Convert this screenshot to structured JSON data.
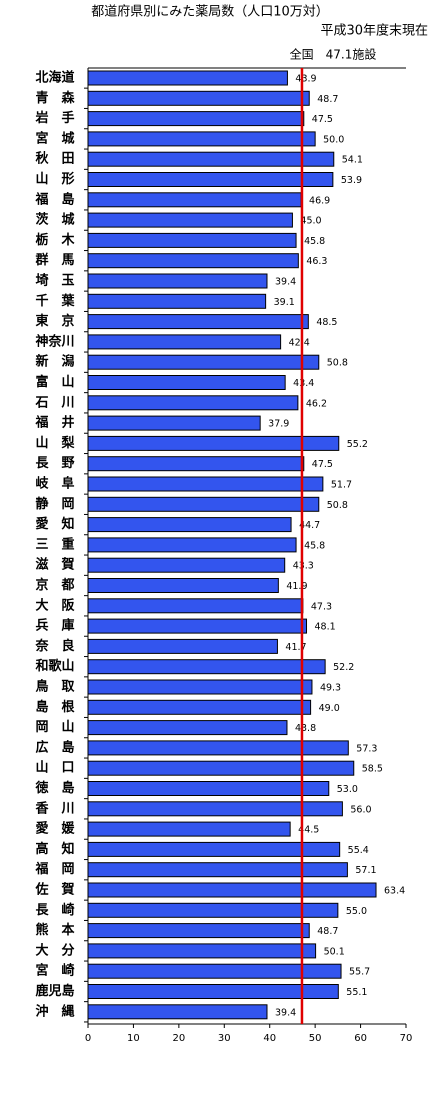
{
  "chart_data": {
    "type": "barh",
    "title": "都道府県別にみた薬局数（人口10万対）",
    "subtitle": "平成30年度末現在",
    "categories": [
      "北海道",
      "青　森",
      "岩　手",
      "宮　城",
      "秋　田",
      "山　形",
      "福　島",
      "茨　城",
      "栃　木",
      "群　馬",
      "埼　玉",
      "千　葉",
      "東　京",
      "神奈川",
      "新　潟",
      "富　山",
      "石　川",
      "福　井",
      "山　梨",
      "長　野",
      "岐　阜",
      "静　岡",
      "愛　知",
      "三　重",
      "滋　賀",
      "京　都",
      "大　阪",
      "兵　庫",
      "奈　良",
      "和歌山",
      "鳥　取",
      "島　根",
      "岡　山",
      "広　島",
      "山　口",
      "徳　島",
      "香　川",
      "愛　媛",
      "高　知",
      "福　岡",
      "佐　賀",
      "長　崎",
      "熊　本",
      "大　分",
      "宮　崎",
      "鹿児島",
      "沖　縄"
    ],
    "values": [
      43.9,
      48.7,
      47.5,
      50.0,
      54.1,
      53.9,
      46.9,
      45.0,
      45.8,
      46.3,
      39.4,
      39.1,
      48.5,
      42.4,
      50.8,
      43.4,
      46.2,
      37.9,
      55.2,
      47.5,
      51.7,
      50.8,
      44.7,
      45.8,
      43.3,
      41.9,
      47.3,
      48.1,
      41.7,
      52.2,
      49.3,
      49.0,
      43.8,
      57.3,
      58.5,
      53.0,
      56.0,
      44.5,
      55.4,
      57.1,
      63.4,
      55.0,
      48.7,
      50.1,
      55.7,
      55.1,
      39.4
    ],
    "value_labels": [
      "43.9",
      "48.7",
      "47.5",
      "50.0",
      "54.1",
      "53.9",
      "46.9",
      "45.0",
      "45.8",
      "46.3",
      "39.4",
      "39.1",
      "48.5",
      "42.4",
      "50.8",
      "43.4",
      "46.2",
      "37.9",
      "55.2",
      "47.5",
      "51.7",
      "50.8",
      "44.7",
      "45.8",
      "43.3",
      "41.9",
      "47.3",
      "48.1",
      "41.7",
      "52.2",
      "49.3",
      "49.0",
      "43.8",
      "57.3",
      "58.5",
      "53.0",
      "56.0",
      "44.5",
      "55.4",
      "57.1",
      "63.4",
      "55.0",
      "48.7",
      "50.1",
      "55.7",
      "55.1",
      "39.4"
    ],
    "color": "#3355ee",
    "xlim": [
      0,
      70
    ],
    "xticks": [
      0,
      10,
      20,
      30,
      40,
      50,
      60,
      70
    ],
    "reference": {
      "value": 47.1,
      "label": "全国　47.1施設",
      "color": "#e00000"
    }
  }
}
